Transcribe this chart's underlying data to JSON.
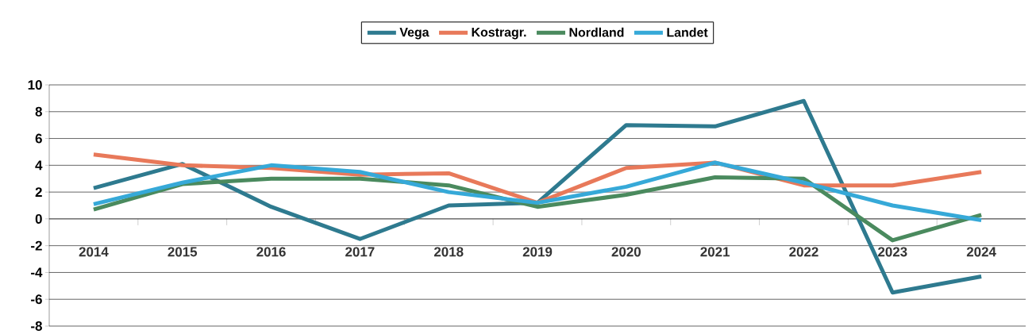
{
  "chart_data": {
    "type": "line",
    "categories": [
      "2014",
      "2015",
      "2016",
      "2017",
      "2018",
      "2019",
      "2020",
      "2021",
      "2022",
      "2023",
      "2024"
    ],
    "series": [
      {
        "name": "Vega",
        "color": "#2e7a8f",
        "values": [
          2.3,
          4.1,
          0.9,
          -1.5,
          1.0,
          1.2,
          7.0,
          6.9,
          8.8,
          -5.5,
          -4.3
        ]
      },
      {
        "name": "Kostragr.",
        "color": "#e8795a",
        "values": [
          4.8,
          4.0,
          3.8,
          3.3,
          3.4,
          1.2,
          3.8,
          4.2,
          2.5,
          2.5,
          3.5
        ]
      },
      {
        "name": "Nordland",
        "color": "#4a8a5e",
        "values": [
          0.7,
          2.6,
          3.0,
          3.0,
          2.5,
          0.9,
          1.8,
          3.1,
          3.0,
          -1.6,
          0.3
        ]
      },
      {
        "name": "Landet",
        "color": "#36a9d8",
        "values": [
          1.1,
          2.7,
          4.0,
          3.5,
          2.0,
          1.2,
          2.4,
          4.2,
          2.7,
          1.0,
          -0.1
        ]
      }
    ],
    "ylim": [
      -8,
      10
    ],
    "yticks": [
      -8,
      -6,
      -4,
      -2,
      0,
      2,
      4,
      6,
      8,
      10
    ],
    "grid": "y",
    "legend": "top",
    "marker": "none",
    "line_style": "solid"
  }
}
